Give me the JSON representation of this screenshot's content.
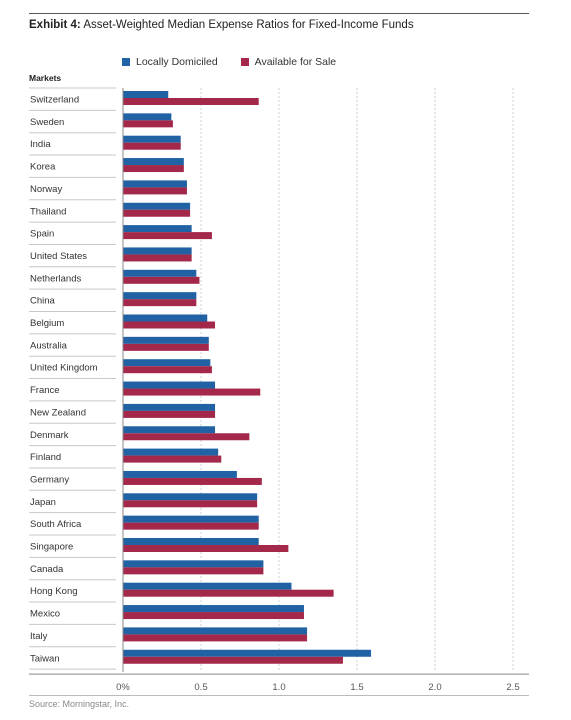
{
  "header": {
    "exhibit_label": "Exhibit 4:",
    "title_text": "Asset-Weighted Median Expense Ratios for Fixed-Income Funds"
  },
  "footer": {
    "source": "Source: Morningstar, Inc."
  },
  "colors": {
    "local": "#2062a4",
    "available": "#a3284a",
    "grid": "#c6d3df",
    "separator": "#c8c8c8"
  },
  "chart_data": {
    "type": "bar",
    "orientation": "horizontal",
    "category_axis_label": "Markets",
    "categories": [
      "Switzerland",
      "Sweden",
      "India",
      "Korea",
      "Norway",
      "Thailand",
      "Spain",
      "United States",
      "Netherlands",
      "China",
      "Belgium",
      "Australia",
      "United Kingdom",
      "France",
      "New Zealand",
      "Denmark",
      "Finland",
      "Germany",
      "Japan",
      "South Africa",
      "Singapore",
      "Canada",
      "Hong Kong",
      "Mexico",
      "Italy",
      "Taiwan"
    ],
    "series": [
      {
        "name": "Locally Domiciled",
        "color": "#2062a4",
        "values": [
          0.29,
          0.31,
          0.37,
          0.39,
          0.41,
          0.43,
          0.44,
          0.44,
          0.47,
          0.47,
          0.54,
          0.55,
          0.56,
          0.59,
          0.59,
          0.59,
          0.61,
          0.73,
          0.86,
          0.87,
          0.87,
          0.9,
          1.08,
          1.16,
          1.18,
          1.59
        ]
      },
      {
        "name": "Available for Sale",
        "color": "#a3284a",
        "values": [
          0.87,
          0.32,
          0.37,
          0.39,
          0.41,
          0.43,
          0.57,
          0.44,
          0.49,
          0.47,
          0.59,
          0.55,
          0.57,
          0.88,
          0.59,
          0.81,
          0.63,
          0.89,
          0.86,
          0.87,
          1.06,
          0.9,
          1.35,
          1.16,
          1.18,
          1.41
        ]
      }
    ],
    "xlim": [
      0,
      2.5
    ],
    "x_ticks": [
      0,
      0.5,
      1.0,
      1.5,
      2.0,
      2.5
    ],
    "x_tick_labels": [
      "0%",
      "0.5",
      "1.0",
      "1.5",
      "2.0",
      "2.5"
    ],
    "grid": true,
    "legend_position": "top"
  }
}
